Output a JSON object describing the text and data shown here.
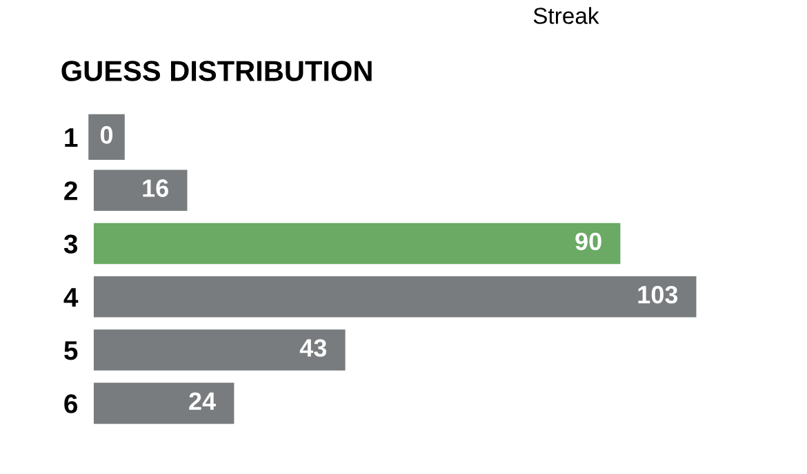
{
  "chart_data": {
    "type": "bar",
    "orientation": "horizontal",
    "title": "GUESS DISTRIBUTION",
    "annotations": [
      "Streak"
    ],
    "categories": [
      "1",
      "2",
      "3",
      "4",
      "5",
      "6"
    ],
    "values": [
      0,
      16,
      90,
      103,
      43,
      24
    ],
    "colors": [
      "#787c7e",
      "#787c7e",
      "#6aaa64",
      "#787c7e",
      "#787c7e",
      "#787c7e"
    ],
    "data_labels": true,
    "grid": false,
    "legend": false
  }
}
